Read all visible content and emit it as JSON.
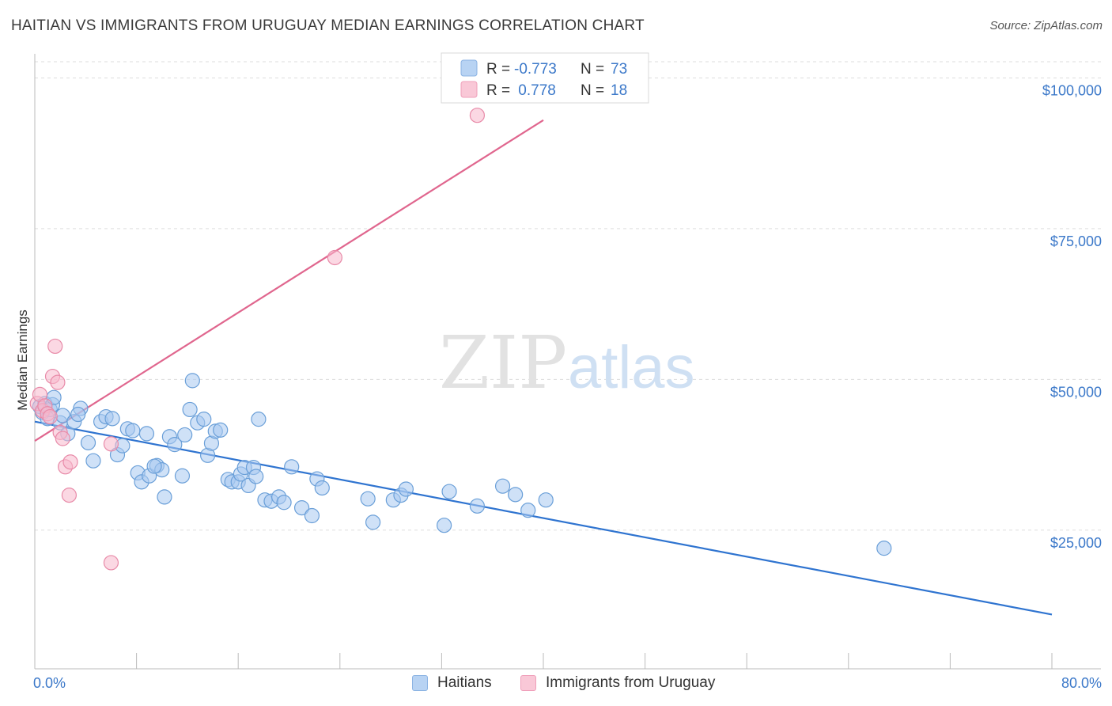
{
  "title": "HAITIAN VS IMMIGRANTS FROM URUGUAY MEDIAN EARNINGS CORRELATION CHART",
  "source": "Source: ZipAtlas.com",
  "watermark": {
    "part1": "ZIP",
    "part2": "atlas"
  },
  "colors": {
    "haitians_fill": "#a8c8f0",
    "haitians_stroke": "#6a9fd8",
    "haitians_line": "#2f74d0",
    "uruguay_fill": "#f7b8cc",
    "uruguay_stroke": "#e88aa8",
    "uruguay_line": "#e0668e",
    "axis_text": "#3b78c9",
    "grid": "#dddddd"
  },
  "legend_top": {
    "rows": [
      {
        "r_label": "R = ",
        "r_value": "-0.773",
        "n_label": "N = ",
        "n_value": "73"
      },
      {
        "r_label": "R = ",
        "r_value": " 0.778",
        "n_label": "N = ",
        "n_value": "18"
      }
    ]
  },
  "legend_bottom": {
    "items": [
      {
        "label": "Haitians"
      },
      {
        "label": "Immigrants from Uruguay"
      }
    ]
  },
  "chart_data": {
    "type": "scatter",
    "title": "HAITIAN VS IMMIGRANTS FROM URUGUAY MEDIAN EARNINGS CORRELATION CHART",
    "xlabel": "",
    "ylabel": "Median Earnings",
    "xlim": [
      0,
      80
    ],
    "ylim": [
      2000,
      104000
    ],
    "x_tick_labels": [
      "0.0%",
      "80.0%"
    ],
    "y_ticks": [
      25000,
      50000,
      75000,
      100000
    ],
    "y_tick_labels": [
      "$25,000",
      "$50,000",
      "$75,000",
      "$100,000"
    ],
    "grid": true,
    "legend_position": "top-center",
    "series": [
      {
        "name": "Haitians",
        "r": -0.773,
        "n": 73,
        "trend": {
          "x": [
            0,
            80
          ],
          "y": [
            43000,
            11000
          ]
        },
        "points": [
          [
            0.4,
            45500
          ],
          [
            0.6,
            44500
          ],
          [
            0.8,
            46000
          ],
          [
            1.0,
            43500
          ],
          [
            1.2,
            45000
          ],
          [
            1.4,
            45800
          ],
          [
            1.5,
            47000
          ],
          [
            2.0,
            42800
          ],
          [
            2.2,
            44000
          ],
          [
            2.6,
            41000
          ],
          [
            3.1,
            43000
          ],
          [
            3.6,
            45200
          ],
          [
            4.2,
            39500
          ],
          [
            4.6,
            36500
          ],
          [
            5.2,
            43000
          ],
          [
            5.6,
            43800
          ],
          [
            6.1,
            43500
          ],
          [
            6.5,
            37500
          ],
          [
            6.9,
            39000
          ],
          [
            7.3,
            41800
          ],
          [
            7.7,
            41500
          ],
          [
            8.1,
            34500
          ],
          [
            8.4,
            33000
          ],
          [
            8.8,
            41000
          ],
          [
            9.0,
            34000
          ],
          [
            9.6,
            35700
          ],
          [
            10.0,
            35000
          ],
          [
            10.2,
            30500
          ],
          [
            10.6,
            40500
          ],
          [
            11.0,
            39200
          ],
          [
            11.6,
            34000
          ],
          [
            11.8,
            40800
          ],
          [
            12.2,
            45000
          ],
          [
            12.4,
            49800
          ],
          [
            12.8,
            42800
          ],
          [
            13.3,
            43400
          ],
          [
            13.6,
            37400
          ],
          [
            13.9,
            39400
          ],
          [
            14.2,
            41400
          ],
          [
            14.6,
            41600
          ],
          [
            15.2,
            33400
          ],
          [
            15.5,
            33000
          ],
          [
            16.0,
            33000
          ],
          [
            16.2,
            34300
          ],
          [
            16.5,
            35400
          ],
          [
            16.8,
            32400
          ],
          [
            17.2,
            35400
          ],
          [
            17.4,
            33900
          ],
          [
            17.6,
            43400
          ],
          [
            18.1,
            30000
          ],
          [
            18.6,
            29800
          ],
          [
            19.2,
            30500
          ],
          [
            19.6,
            29600
          ],
          [
            20.2,
            35500
          ],
          [
            21.0,
            28700
          ],
          [
            21.8,
            27400
          ],
          [
            22.2,
            33500
          ],
          [
            22.6,
            32000
          ],
          [
            26.2,
            30200
          ],
          [
            26.6,
            26300
          ],
          [
            28.2,
            30000
          ],
          [
            28.8,
            30800
          ],
          [
            29.2,
            31800
          ],
          [
            32.2,
            25800
          ],
          [
            32.6,
            31400
          ],
          [
            34.8,
            29000
          ],
          [
            36.8,
            32300
          ],
          [
            37.8,
            30900
          ],
          [
            38.8,
            28300
          ],
          [
            40.2,
            30000
          ],
          [
            66.8,
            22000
          ],
          [
            3.4,
            44200
          ],
          [
            9.4,
            35600
          ]
        ]
      },
      {
        "name": "Immigrants from Uruguay",
        "r": 0.778,
        "n": 18,
        "trend": {
          "x": [
            0,
            40
          ],
          "y": [
            39800,
            93000
          ]
        },
        "points": [
          [
            0.2,
            46000
          ],
          [
            0.4,
            47500
          ],
          [
            0.6,
            44800
          ],
          [
            0.8,
            45600
          ],
          [
            1.0,
            44300
          ],
          [
            1.2,
            43800
          ],
          [
            1.4,
            50500
          ],
          [
            1.6,
            55500
          ],
          [
            1.8,
            49500
          ],
          [
            2.0,
            41200
          ],
          [
            2.2,
            40200
          ],
          [
            2.4,
            35500
          ],
          [
            2.8,
            36300
          ],
          [
            2.7,
            30800
          ],
          [
            6.0,
            39300
          ],
          [
            6.0,
            19600
          ],
          [
            23.6,
            70200
          ],
          [
            34.8,
            93800
          ]
        ]
      }
    ]
  }
}
